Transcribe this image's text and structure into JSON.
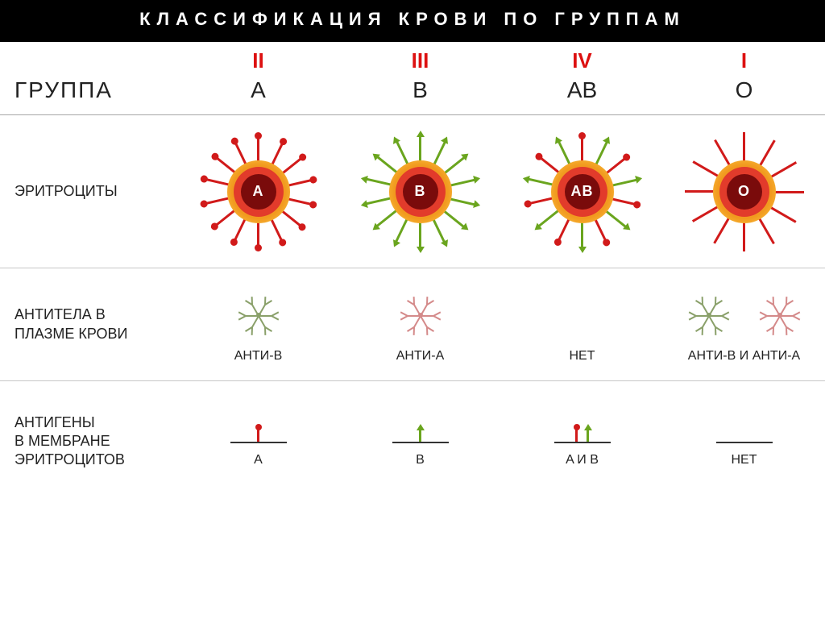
{
  "colors": {
    "red": "#d11a1a",
    "darkred": "#7a0b0b",
    "orange": "#f19a1f",
    "yellow": "#ffd24a",
    "green": "#6aa51e",
    "darkgreen": "#3e6f12",
    "pink": "#d48a8a",
    "olive": "#8aa06a",
    "black": "#000000",
    "gray": "#a7a7a7",
    "white": "#ffffff",
    "text": "#222222"
  },
  "title": "КЛАССИФИКАЦИЯ КРОВИ ПО ГРУППАМ",
  "row_labels": {
    "group": "ГРУППА",
    "erythrocytes": "ЭРИТРОЦИТЫ",
    "antibodies": "АНТИТЕЛА В\nПЛАЗМЕ КРОВИ",
    "antigens": "АНТИГЕНЫ\nВ МЕМБРАНЕ\nЭРИТРОЦИТОВ"
  },
  "groups": [
    {
      "roman": "II",
      "letter": "A",
      "cell_label": "A",
      "spikes": {
        "count": 14,
        "type": "ball",
        "color": "#d11a1a"
      },
      "antibodies": [
        {
          "color": "#8aa06a"
        }
      ],
      "antibody_label": "АНТИ-B",
      "antigens": [
        {
          "type": "ball",
          "color": "#d11a1a",
          "x": 35
        }
      ],
      "antigen_label": "A"
    },
    {
      "roman": "III",
      "letter": "B",
      "cell_label": "B",
      "spikes": {
        "count": 14,
        "type": "arrow",
        "color": "#6aa51e"
      },
      "antibodies": [
        {
          "color": "#d48a8a"
        }
      ],
      "antibody_label": "АНТИ-A",
      "antigens": [
        {
          "type": "arrow",
          "color": "#6aa51e",
          "x": 35
        }
      ],
      "antigen_label": "B"
    },
    {
      "roman": "IV",
      "letter": "AB",
      "cell_label": "AB",
      "spikes": {
        "count": 14,
        "type": "mix",
        "colorA": "#d11a1a",
        "colorB": "#6aa51e"
      },
      "antibodies": [],
      "antibody_label": "НЕТ",
      "antigens": [
        {
          "type": "ball",
          "color": "#d11a1a",
          "x": 28
        },
        {
          "type": "arrow",
          "color": "#6aa51e",
          "x": 42
        }
      ],
      "antigen_label": "A И B"
    },
    {
      "roman": "I",
      "letter": "O",
      "cell_label": "O",
      "spikes": {
        "count": 12,
        "type": "line",
        "color": "#d11a1a"
      },
      "antibodies": [
        {
          "color": "#8aa06a"
        },
        {
          "color": "#d48a8a"
        }
      ],
      "antibody_label": "АНТИ-B И АНТИ-A",
      "antigens": [],
      "antigen_label": "НЕТ"
    }
  ],
  "typography": {
    "title_fontsize": 22,
    "roman_fontsize": 26,
    "letter_fontsize": 28,
    "rowlabel_fontsize": 18,
    "sublabel_fontsize": 16,
    "cell_label_fontsize": 18
  },
  "cell_style": {
    "outer_diameter": 78,
    "inner_diameter": 44,
    "spike_length": 32,
    "spike_radius": 70,
    "outer_color": "#f19a1f",
    "outer_glow": "#ffd24a",
    "mid_color": "#e23b2b",
    "inner_color": "#7a0b0b"
  }
}
